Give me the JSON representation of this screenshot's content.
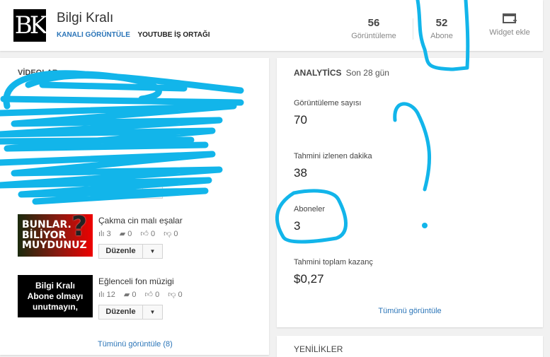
{
  "header": {
    "logo_text": "BK",
    "channel_name": "Bilgi Kralı",
    "view_channel": "KANALI GÖRÜNTÜLE",
    "partner": "YOUTUBE İŞ ORTAĞI",
    "stats": [
      {
        "value": "56",
        "label": "Görüntüleme"
      },
      {
        "value": "52",
        "label": "Abone"
      }
    ],
    "widget_label": "Widget ekle"
  },
  "videos": {
    "heading": "VİDEOLAR",
    "edit_label": "Düzenle",
    "items": [
      {
        "title": "Çakma cin malı eşalar",
        "thumb_text": "BUNLAR. BİLİYOR MUYDUNUZ",
        "views": "3",
        "comments": "0",
        "likes": "0",
        "dislikes": "0"
      },
      {
        "title": "Eğlenceli fon müzigi",
        "thumb_text": "Bilgi Kralı Abone olmayı unutmayın,",
        "views": "12",
        "comments": "0",
        "likes": "0",
        "dislikes": "0"
      }
    ],
    "view_all": "Tümünü görüntüle (8)"
  },
  "analytics": {
    "title": "ANALYTİCS",
    "period": "Son 28 gün",
    "metrics": [
      {
        "label": "Görüntüleme sayısı",
        "value": "70"
      },
      {
        "label": "Tahmini izlenen dakika",
        "value": "38"
      },
      {
        "label": "Aboneler",
        "value": "3"
      },
      {
        "label": "Tahmini toplam kazanç",
        "value": "$0,27"
      }
    ],
    "view_all": "Tümünü görüntüle"
  },
  "news": {
    "title": "YENİLİKLER"
  },
  "colors": {
    "link": "#2b75b8",
    "scribble": "#12b5ea"
  }
}
